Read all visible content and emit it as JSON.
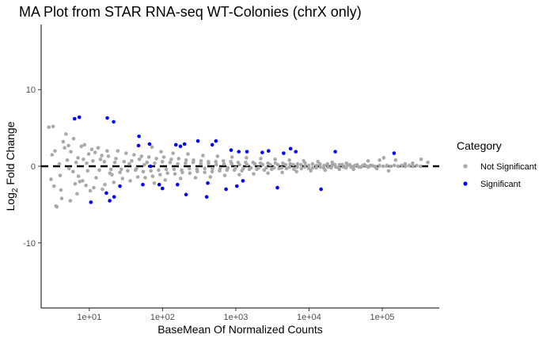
{
  "chart_data": {
    "type": "scatter",
    "title": "MA Plot from STAR RNA-seq WT-Colonies (chrX only)",
    "xlabel": "BaseMean Of Normalized Counts",
    "ylabel_prefix": "Log",
    "ylabel_sub": "2",
    "ylabel_suffix": " Fold Change",
    "x_scale": "log10",
    "xlim": [
      2.2,
      600000
    ],
    "ylim": [
      -18.5,
      18.5
    ],
    "x_ticks": [
      10,
      100,
      1000,
      10000,
      100000
    ],
    "x_tick_labels": [
      "1e+01",
      "1e+02",
      "1e+03",
      "1e+04",
      "1e+05"
    ],
    "y_ticks": [
      -10,
      0,
      10
    ],
    "y_tick_labels": [
      "-10",
      "0",
      "10"
    ],
    "grid": false,
    "reference_line": {
      "y": 0,
      "style": "dashed",
      "color": "#000000"
    },
    "legend": {
      "title": "Category",
      "position": "right",
      "entries": [
        "Not Significant",
        "Significant"
      ]
    },
    "colors": {
      "Not Significant": "#A9A9A9",
      "Significant": "#0000FF"
    },
    "series": [
      {
        "name": "Not Significant",
        "color": "#A9A9A9",
        "points": [
          [
            2.8,
            5.1
          ],
          [
            3.2,
            5.2
          ],
          [
            3.5,
            -5.2
          ],
          [
            3.6,
            -5.3
          ],
          [
            4.2,
            -4.2
          ],
          [
            4.8,
            4.2
          ],
          [
            5.5,
            -4.5
          ],
          [
            6.1,
            3.6
          ],
          [
            4.4,
            3.2
          ],
          [
            5.2,
            2.7
          ],
          [
            4.1,
            -3.1
          ],
          [
            6.8,
            -3.6
          ],
          [
            3.1,
            1.5
          ],
          [
            4.0,
            -1.2
          ],
          [
            5.0,
            0.8
          ],
          [
            6.0,
            -0.7
          ],
          [
            7.0,
            1.1
          ],
          [
            8.1,
            -1.9
          ],
          [
            9.2,
            0.4
          ],
          [
            10.8,
            2.2
          ],
          [
            12.4,
            -1.5
          ],
          [
            14.2,
            0.9
          ],
          [
            3.0,
            -1.7
          ],
          [
            3.4,
            2.0
          ],
          [
            5.6,
            1.9
          ],
          [
            7.4,
            -2.0
          ],
          [
            9.8,
            1.6
          ],
          [
            11.5,
            -2.8
          ],
          [
            13.2,
            2.4
          ],
          [
            16.3,
            -2.4
          ],
          [
            18.2,
            1.3
          ],
          [
            20.4,
            -1.1
          ],
          [
            23.1,
            1.0
          ],
          [
            26.2,
            -0.8
          ],
          [
            29.8,
            0.6
          ],
          [
            33.4,
            -0.6
          ],
          [
            37.9,
            0.7
          ],
          [
            42.7,
            -0.5
          ],
          [
            48.3,
            0.9
          ],
          [
            54.6,
            -0.7
          ],
          [
            61.5,
            0.5
          ],
          [
            69.5,
            -0.6
          ],
          [
            78.2,
            0.4
          ],
          [
            88.3,
            -0.5
          ],
          [
            99.5,
            0.6
          ],
          [
            112.4,
            -0.4
          ],
          [
            126.8,
            0.5
          ],
          [
            143.2,
            -0.4
          ],
          [
            161.5,
            0.3
          ],
          [
            182.2,
            -0.5
          ],
          [
            205.6,
            0.4
          ],
          [
            232.2,
            -0.3
          ],
          [
            262.1,
            0.5
          ],
          [
            295.8,
            -0.4
          ],
          [
            333.9,
            0.3
          ],
          [
            376.9,
            -0.3
          ],
          [
            425.5,
            0.4
          ],
          [
            480.3,
            -0.3
          ],
          [
            542.1,
            0.2
          ],
          [
            611.9,
            -0.3
          ],
          [
            690.7,
            0.3
          ],
          [
            779.6,
            -0.2
          ],
          [
            880.0,
            0.3
          ],
          [
            993.3,
            -0.2
          ],
          [
            1121.2,
            0.2
          ],
          [
            1265.6,
            -0.3
          ],
          [
            1428.6,
            0.2
          ],
          [
            1612.5,
            -0.2
          ],
          [
            1820.2,
            0.3
          ],
          [
            2054.6,
            -0.2
          ],
          [
            2319.1,
            0.2
          ],
          [
            2617.7,
            -0.2
          ],
          [
            2954.8,
            0.2
          ],
          [
            3335.3,
            -0.2
          ],
          [
            3764.8,
            0.2
          ],
          [
            4249.5,
            -0.2
          ],
          [
            4796.8,
            0.2
          ],
          [
            5414.4,
            -0.1
          ],
          [
            6111.6,
            0.2
          ],
          [
            6898.6,
            -0.1
          ],
          [
            7786.9,
            0.2
          ],
          [
            8789.6,
            -0.1
          ],
          [
            9921.4,
            0.1
          ],
          [
            11198.9,
            -0.2
          ],
          [
            12641.0,
            0.1
          ],
          [
            14268.7,
            -0.1
          ],
          [
            16106.0,
            0.1
          ],
          [
            18180.0,
            -0.1
          ],
          [
            20521.0,
            0.1
          ],
          [
            23163.5,
            -0.1
          ],
          [
            26146.1,
            0.2
          ],
          [
            29512.9,
            -0.1
          ],
          [
            33313.2,
            0.1
          ],
          [
            37602.6,
            -0.1
          ],
          [
            42444.6,
            0.1
          ],
          [
            47910.0,
            -0.1
          ],
          [
            54079.0,
            0.1
          ],
          [
            61042.6,
            0.0
          ],
          [
            68902.8,
            0.1
          ],
          [
            77775.0,
            0.0
          ],
          [
            3.3,
            -2.6
          ],
          [
            4.6,
            2.4
          ],
          [
            6.4,
            -2.3
          ],
          [
            8.6,
            2.8
          ],
          [
            10.3,
            -3.2
          ],
          [
            15.1,
            -3.0
          ],
          [
            17.5,
            2.0
          ],
          [
            21.6,
            -2.1
          ],
          [
            24.5,
            2.0
          ],
          [
            28.4,
            -1.6
          ],
          [
            31.8,
            1.7
          ],
          [
            36.2,
            -1.9
          ],
          [
            40.8,
            1.5
          ],
          [
            45.9,
            -1.4
          ],
          [
            51.6,
            1.3
          ],
          [
            58.0,
            -1.5
          ],
          [
            65.2,
            1.2
          ],
          [
            73.3,
            -1.3
          ],
          [
            82.4,
            1.0
          ],
          [
            92.6,
            -1.1
          ],
          [
            104.1,
            1.2
          ],
          [
            117.0,
            -0.9
          ],
          [
            131.5,
            0.9
          ],
          [
            147.8,
            -1.0
          ],
          [
            166.1,
            1.0
          ],
          [
            186.7,
            -0.8
          ],
          [
            209.9,
            0.8
          ],
          [
            235.9,
            -0.9
          ],
          [
            265.2,
            0.8
          ],
          [
            298.1,
            -0.7
          ],
          [
            335.1,
            0.7
          ],
          [
            376.6,
            -0.8
          ],
          [
            423.3,
            0.6
          ],
          [
            475.8,
            -0.7
          ],
          [
            534.8,
            0.6
          ],
          [
            601.1,
            -0.6
          ],
          [
            675.7,
            0.7
          ],
          [
            759.5,
            -0.5
          ],
          [
            853.7,
            0.6
          ],
          [
            959.6,
            -0.5
          ],
          [
            1078.6,
            0.5
          ],
          [
            1212.4,
            -0.6
          ],
          [
            1362.8,
            0.5
          ],
          [
            1531.8,
            -0.4
          ],
          [
            1721.8,
            0.5
          ],
          [
            1935.3,
            -0.4
          ],
          [
            2175.4,
            0.4
          ],
          [
            2445.2,
            -0.5
          ],
          [
            2748.5,
            0.4
          ],
          [
            3089.4,
            -0.4
          ],
          [
            3472.6,
            0.4
          ],
          [
            3903.3,
            -0.3
          ],
          [
            4387.4,
            0.4
          ],
          [
            4931.6,
            -0.3
          ],
          [
            5543.3,
            0.3
          ],
          [
            6230.8,
            -0.4
          ],
          [
            7003.7,
            0.3
          ],
          [
            7872.4,
            -0.3
          ],
          [
            8848.9,
            0.4
          ],
          [
            9946.4,
            -0.3
          ],
          [
            11180.1,
            0.3
          ],
          [
            12566.8,
            -0.2
          ],
          [
            14125.5,
            0.3
          ],
          [
            15877.5,
            -0.2
          ],
          [
            17846.8,
            0.3
          ],
          [
            20060.4,
            -0.2
          ],
          [
            22548.6,
            0.2
          ],
          [
            25345.3,
            -0.2
          ],
          [
            28489.0,
            0.2
          ],
          [
            32022.6,
            -0.2
          ],
          [
            35994.4,
            0.2
          ],
          [
            40458.9,
            -0.1
          ],
          [
            45477.1,
            0.2
          ],
          [
            51117.8,
            -0.1
          ],
          [
            57458.1,
            0.2
          ],
          [
            64584.8,
            -0.1
          ],
          [
            72595.4,
            0.1
          ],
          [
            81599.6,
            -0.1
          ],
          [
            91720.6,
            0.1
          ],
          [
            103096.9,
            0.0
          ],
          [
            115884.2,
            0.1
          ],
          [
            130257.6,
            0.0
          ],
          [
            146413.7,
            0.1
          ],
          [
            164573.7,
            0.0
          ],
          [
            184986.1,
            0.1
          ],
          [
            207930.4,
            0.0
          ],
          [
            233720.6,
            0.1
          ],
          [
            262719.2,
            0.0
          ],
          [
            295314.9,
            0.1
          ],
          [
            331950.1,
            0.0
          ],
          [
            7.8,
            2.6
          ],
          [
            9.0,
            -2.5
          ],
          [
            12.0,
            1.8
          ],
          [
            14.8,
            1.4
          ],
          [
            19.1,
            -0.9
          ],
          [
            22.3,
            0.5
          ],
          [
            27.4,
            -0.4
          ],
          [
            35.1,
            0.3
          ],
          [
            44.2,
            -0.3
          ],
          [
            56.3,
            0.2
          ],
          [
            3.9,
            0.3
          ],
          [
            5.3,
            -0.3
          ],
          [
            6.6,
            0.5
          ],
          [
            7.1,
            -1.3
          ],
          [
            8.3,
            0.9
          ],
          [
            9.5,
            -0.6
          ],
          [
            11.2,
            0.7
          ],
          [
            13.7,
            -0.5
          ],
          [
            16.0,
            0.6
          ],
          [
            19.8,
            -0.4
          ],
          [
            71.8,
            2.5
          ],
          [
            77.1,
            -2.2
          ],
          [
            95.4,
            1.9
          ],
          [
            108.6,
            -1.8
          ],
          [
            139.2,
            1.7
          ],
          [
            176.5,
            -1.6
          ],
          [
            222.4,
            1.6
          ],
          [
            281.9,
            -1.5
          ],
          [
            356.2,
            1.4
          ],
          [
            448.6,
            -1.4
          ],
          [
            563.4,
            1.3
          ],
          [
            707.9,
            -1.2
          ],
          [
            888.5,
            1.2
          ],
          [
            1114.9,
            -1.1
          ],
          [
            1398.6,
            1.1
          ],
          [
            1752.9,
            -1.0
          ],
          [
            2195.2,
            1.0
          ],
          [
            2750.4,
            -0.9
          ],
          [
            3443.6,
            0.9
          ],
          [
            4311.0,
            -0.8
          ],
          [
            5395.4,
            0.8
          ],
          [
            6752.8,
            -0.7
          ],
          [
            8450.3,
            0.7
          ],
          [
            10575.4,
            -0.6
          ],
          [
            13234.2,
            0.6
          ],
          [
            16560.6,
            -0.5
          ],
          [
            20725.1,
            0.5
          ],
          [
            25937.0,
            -0.4
          ],
          [
            32458.4,
            0.4
          ],
          [
            40617.9,
            -0.4
          ],
          [
            105000.0,
            1.1
          ],
          [
            122000.0,
            -0.6
          ],
          [
            152000.0,
            0.8
          ],
          [
            205000.0,
            0.3
          ],
          [
            260000.0,
            0.4
          ],
          [
            340000.0,
            0.9
          ],
          [
            420000.0,
            0.5
          ],
          [
            92000.0,
            0.8
          ],
          [
            84000.0,
            -0.3
          ],
          [
            64000.0,
            0.7
          ]
        ]
      },
      {
        "name": "Significant",
        "color": "#0000FF",
        "points": [
          [
            6.3,
            6.2
          ],
          [
            7.3,
            6.4
          ],
          [
            17.6,
            6.3
          ],
          [
            21.5,
            5.8
          ],
          [
            10.5,
            -4.7
          ],
          [
            17.1,
            -3.5
          ],
          [
            19.0,
            -4.5
          ],
          [
            21.8,
            -4.0
          ],
          [
            26.2,
            -2.6
          ],
          [
            47.7,
            3.9
          ],
          [
            47.0,
            2.7
          ],
          [
            53.8,
            -2.4
          ],
          [
            66.4,
            2.9
          ],
          [
            68.3,
            0.0
          ],
          [
            90.1,
            -2.4
          ],
          [
            99.7,
            -2.9
          ],
          [
            152.2,
            2.8
          ],
          [
            160.2,
            -2.4
          ],
          [
            175.6,
            2.6
          ],
          [
            199.6,
            2.9
          ],
          [
            209.4,
            -3.7
          ],
          [
            303.9,
            3.3
          ],
          [
            400.6,
            -4.0
          ],
          [
            414.7,
            -2.2
          ],
          [
            477.5,
            2.8
          ],
          [
            535.6,
            3.3
          ],
          [
            736.4,
            -3.0
          ],
          [
            863.7,
            2.1
          ],
          [
            1033.3,
            -2.6
          ],
          [
            1100.3,
            1.9
          ],
          [
            1250.7,
            -1.9
          ],
          [
            1421.0,
            1.9
          ],
          [
            2300.8,
            1.8
          ],
          [
            2800.0,
            2.0
          ],
          [
            3700.0,
            -2.8
          ],
          [
            4500.1,
            1.7
          ],
          [
            5600.0,
            2.3
          ],
          [
            6600.0,
            1.9
          ],
          [
            14600.0,
            -3.0
          ],
          [
            22800.0,
            1.9
          ],
          [
            145000.0,
            1.7
          ]
        ]
      }
    ]
  }
}
